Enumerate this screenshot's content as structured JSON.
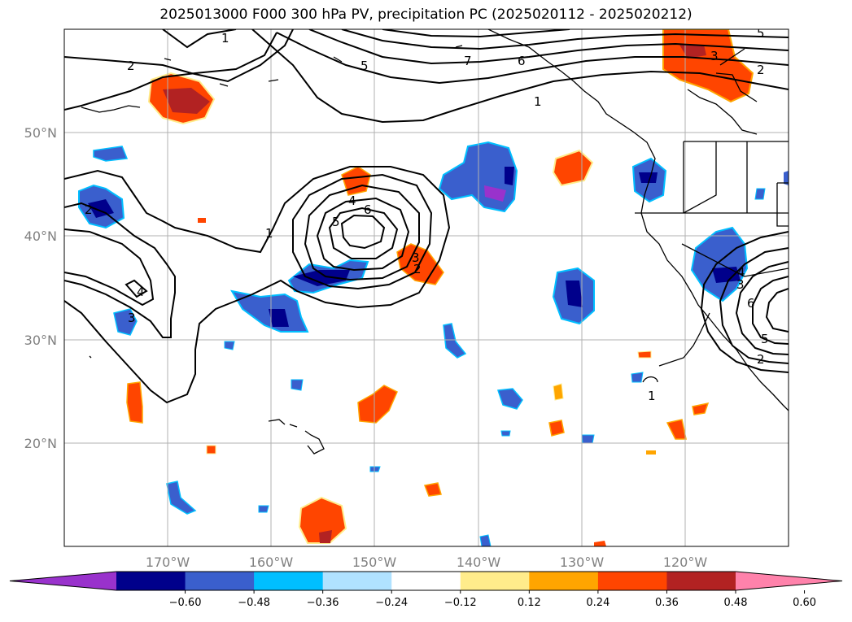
{
  "title": "2025013000 F000 300 hPa PV, precipitation PC (2025020112 - 2025020212)",
  "map": {
    "lat_labels": [
      "50°N",
      "40°N",
      "30°N",
      "20°N"
    ],
    "lon_labels": [
      "170°W",
      "160°W",
      "150°W",
      "140°W",
      "130°W",
      "120°W"
    ],
    "grid": true
  },
  "colorbar": {
    "ticks": [
      "−0.60",
      "−0.48",
      "−0.36",
      "−0.24",
      "−0.12",
      "0.12",
      "0.24",
      "0.36",
      "0.48",
      "0.60"
    ],
    "colors": [
      "#9932cc",
      "#00008b",
      "#3a5fcd",
      "#00bfff",
      "#b0e2ff",
      "#ffffff",
      "#ffec8b",
      "#ffa500",
      "#ff4500",
      "#b22222",
      "#ff82ab"
    ],
    "extend": "both"
  },
  "contour_labels": [
    "1",
    "2",
    "5",
    "7",
    "6",
    "3",
    "2",
    "1",
    "2",
    "4",
    "6",
    "5",
    "1",
    "3",
    "2",
    "4",
    "3",
    "1",
    "5",
    "4",
    "3",
    "6",
    "5",
    "2"
  ]
}
